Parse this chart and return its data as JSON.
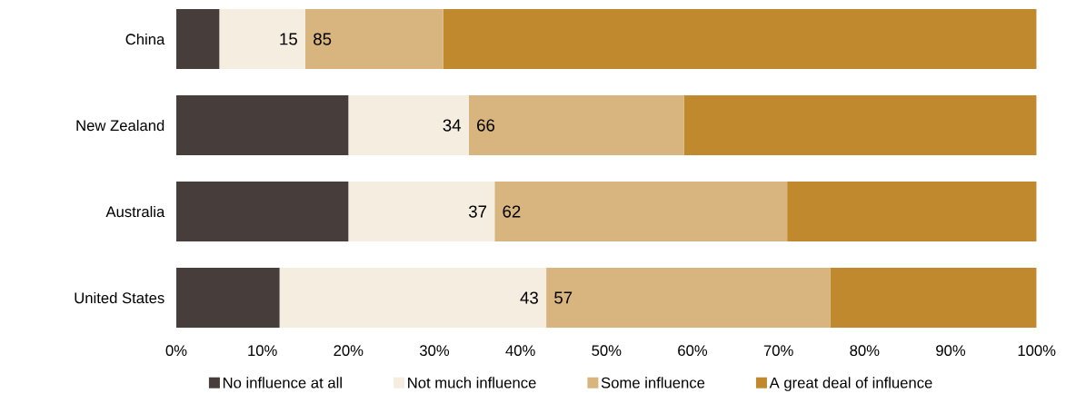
{
  "chart_data": {
    "type": "bar",
    "orientation": "horizontal",
    "stacked": true,
    "categories": [
      "China",
      "New Zealand",
      "Australia",
      "United States"
    ],
    "series": [
      {
        "name": "No influence at all",
        "color": "#473d3a",
        "values": [
          5,
          20,
          20,
          12
        ]
      },
      {
        "name": "Not much influence",
        "color": "#f5ede0",
        "values": [
          10,
          14,
          17,
          31
        ]
      },
      {
        "name": "Some influence",
        "color": "#d8b47e",
        "values": [
          16,
          25,
          34,
          33
        ]
      },
      {
        "name": "A great deal of influence",
        "color": "#c0892e",
        "values": [
          69,
          41,
          29,
          24
        ]
      }
    ],
    "xlim": [
      0,
      100
    ],
    "xticks": [
      {
        "value": 0,
        "label": "0%"
      },
      {
        "value": 10,
        "label": "10%"
      },
      {
        "value": 20,
        "label": "20%"
      },
      {
        "value": 30,
        "label": "30%"
      },
      {
        "value": 40,
        "label": "40%"
      },
      {
        "value": 50,
        "label": "50%"
      },
      {
        "value": 60,
        "label": "60%"
      },
      {
        "value": 70,
        "label": "70%"
      },
      {
        "value": 80,
        "label": "80%"
      },
      {
        "value": 90,
        "label": "90%"
      },
      {
        "value": 100,
        "label": "100%"
      }
    ],
    "annotations": [
      {
        "text": "15",
        "x": 15,
        "y": "China"
      },
      {
        "text": "85",
        "x": 15,
        "y": "China"
      },
      {
        "text": "34",
        "x": 34,
        "y": "New Zealand"
      },
      {
        "text": "66",
        "x": 34,
        "y": "New Zealand"
      },
      {
        "text": "37",
        "x": 37,
        "y": "Australia"
      },
      {
        "text": "62",
        "x": 37,
        "y": "Australia"
      },
      {
        "text": "43",
        "x": 43,
        "y": "United States"
      },
      {
        "text": "57",
        "x": 43,
        "y": "United States"
      }
    ],
    "legend": "bottom",
    "grid": false
  }
}
